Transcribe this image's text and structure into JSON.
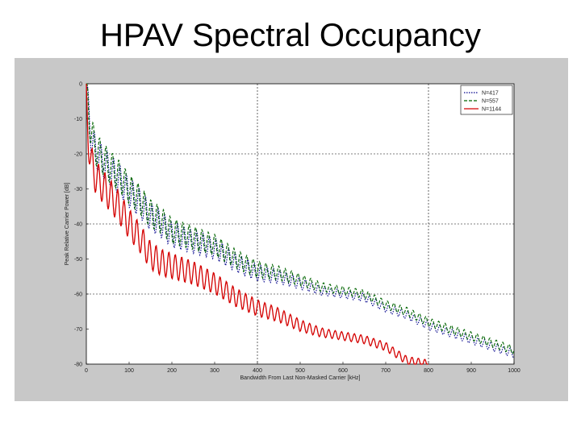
{
  "slide": {
    "title": "HPAV Spectral Occupancy"
  },
  "chart_data": {
    "type": "line",
    "title": "HPAV Spectral Occupancy",
    "xlabel": "Bandwidth From Last Non-Masked Carrier [kHz]",
    "ylabel": "Peak Relative Carrier Power [dB]",
    "xlim": [
      0,
      1000
    ],
    "ylim": [
      -80,
      0
    ],
    "xticks": [
      "0",
      "100",
      "200",
      "300",
      "400",
      "500",
      "600",
      "700",
      "800",
      "900",
      "1000"
    ],
    "yticks": [
      "0",
      "-10",
      "-20",
      "-30",
      "-40",
      "-50",
      "-60",
      "-70",
      "-80"
    ],
    "grid": "dotted",
    "legend_position": "top-right",
    "series": [
      {
        "name": "N=417",
        "color": "#00008b",
        "style": "dotted",
        "x": [
          0,
          5,
          10,
          20,
          30,
          50,
          75,
          100,
          125,
          150,
          175,
          200,
          250,
          300,
          350,
          400,
          450,
          500,
          550,
          600,
          650,
          700,
          750,
          800,
          850,
          900,
          950,
          1000
        ],
        "y": [
          -2,
          -8,
          -14,
          -19,
          -21,
          -24,
          -27,
          -31,
          -34,
          -38,
          -40,
          -43,
          -45,
          -47,
          -51,
          -54,
          -55,
          -57,
          -59,
          -60,
          -61,
          -64,
          -66,
          -69,
          -71,
          -73,
          -75,
          -77
        ]
      },
      {
        "name": "N=557",
        "color": "#006400",
        "style": "dashed",
        "x": [
          0,
          5,
          10,
          20,
          30,
          50,
          75,
          100,
          125,
          150,
          175,
          200,
          250,
          300,
          350,
          400,
          450,
          500,
          550,
          600,
          650,
          700,
          750,
          800,
          850,
          900,
          950,
          1000
        ],
        "y": [
          -1,
          -7,
          -13,
          -18,
          -20,
          -23,
          -26,
          -30,
          -33,
          -37,
          -39,
          -42,
          -44,
          -46,
          -50,
          -53,
          -54,
          -56,
          -58,
          -59,
          -60,
          -63,
          -65,
          -68,
          -70,
          -72,
          -74,
          -76
        ]
      },
      {
        "name": "N=1144",
        "color": "#d40000",
        "style": "solid",
        "x": [
          0,
          5,
          10,
          20,
          30,
          50,
          75,
          100,
          125,
          150,
          175,
          200,
          250,
          300,
          350,
          400,
          450,
          500,
          550,
          600,
          650,
          700,
          750,
          800
        ],
        "y": [
          -4,
          -16,
          -22,
          -26,
          -28,
          -31,
          -35,
          -40,
          -44,
          -49,
          -51,
          -52,
          -54,
          -57,
          -61,
          -64,
          -66,
          -69,
          -71,
          -72,
          -73,
          -75,
          -79,
          -80
        ]
      }
    ]
  }
}
